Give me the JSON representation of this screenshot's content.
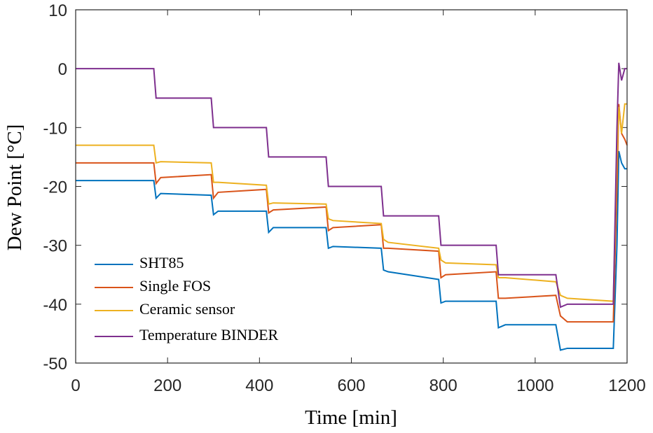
{
  "chart_data": {
    "type": "line",
    "xlabel": "Time [min]",
    "ylabel": "Dew Point [°C]",
    "x": [
      0,
      170,
      175,
      185,
      295,
      300,
      310,
      415,
      420,
      430,
      545,
      550,
      560,
      665,
      670,
      680,
      790,
      795,
      805,
      915,
      920,
      935,
      1045,
      1055,
      1070,
      1170,
      1178,
      1182,
      1188,
      1195,
      1200
    ],
    "series": [
      {
        "name": "SHT85",
        "color": "#0072bd",
        "values": [
          -19,
          -19,
          -22,
          -21.2,
          -21.5,
          -24.8,
          -24.2,
          -24.2,
          -27.8,
          -27,
          -27,
          -30.5,
          -30.2,
          -30.5,
          -34.2,
          -34.5,
          -35.8,
          -39.8,
          -39.5,
          -39.5,
          -44,
          -43.5,
          -43.5,
          -47.8,
          -47.5,
          -47.5,
          -30,
          -14,
          -16,
          -17,
          -17
        ]
      },
      {
        "name": "Single FOS",
        "color": "#d95319",
        "values": [
          -16,
          -16,
          -19.5,
          -18.5,
          -18,
          -22,
          -21,
          -20.5,
          -24.5,
          -24,
          -23.5,
          -27.5,
          -27,
          -26.5,
          -30.5,
          -30.5,
          -31,
          -35.5,
          -35,
          -34.5,
          -39,
          -39,
          -38.5,
          -42,
          -43,
          -43,
          -20,
          -6,
          -11,
          -12,
          -13
        ]
      },
      {
        "name": "Ceramic sensor",
        "color": "#edb120",
        "values": [
          -13,
          -13,
          -16,
          -15.8,
          -16,
          -19.3,
          -19.3,
          -19.8,
          -23,
          -22.8,
          -23,
          -25.5,
          -25.8,
          -26.3,
          -29,
          -29.5,
          -30.5,
          -32.5,
          -33,
          -33.3,
          -35.5,
          -35.5,
          -36.2,
          -38.5,
          -39,
          -39.5,
          -15,
          -6.5,
          -11,
          -6,
          -6
        ]
      },
      {
        "name": "Temperature BINDER",
        "color": "#7e2f8e",
        "values": [
          0,
          0,
          -5,
          -5,
          -5,
          -10,
          -10,
          -10,
          -15,
          -15,
          -15,
          -20,
          -20,
          -20,
          -25,
          -25,
          -25,
          -30,
          -30,
          -30,
          -35,
          -35,
          -35,
          -40.5,
          -40,
          -40,
          -10,
          1,
          -2,
          0,
          0
        ]
      }
    ],
    "xlim": [
      0,
      1200
    ],
    "xticks": [
      0,
      200,
      400,
      600,
      800,
      1000,
      1200
    ],
    "ylim": [
      -50,
      10
    ],
    "yticks": [
      -50,
      -40,
      -30,
      -20,
      -10,
      0,
      10
    ],
    "legend": "lower left"
  }
}
